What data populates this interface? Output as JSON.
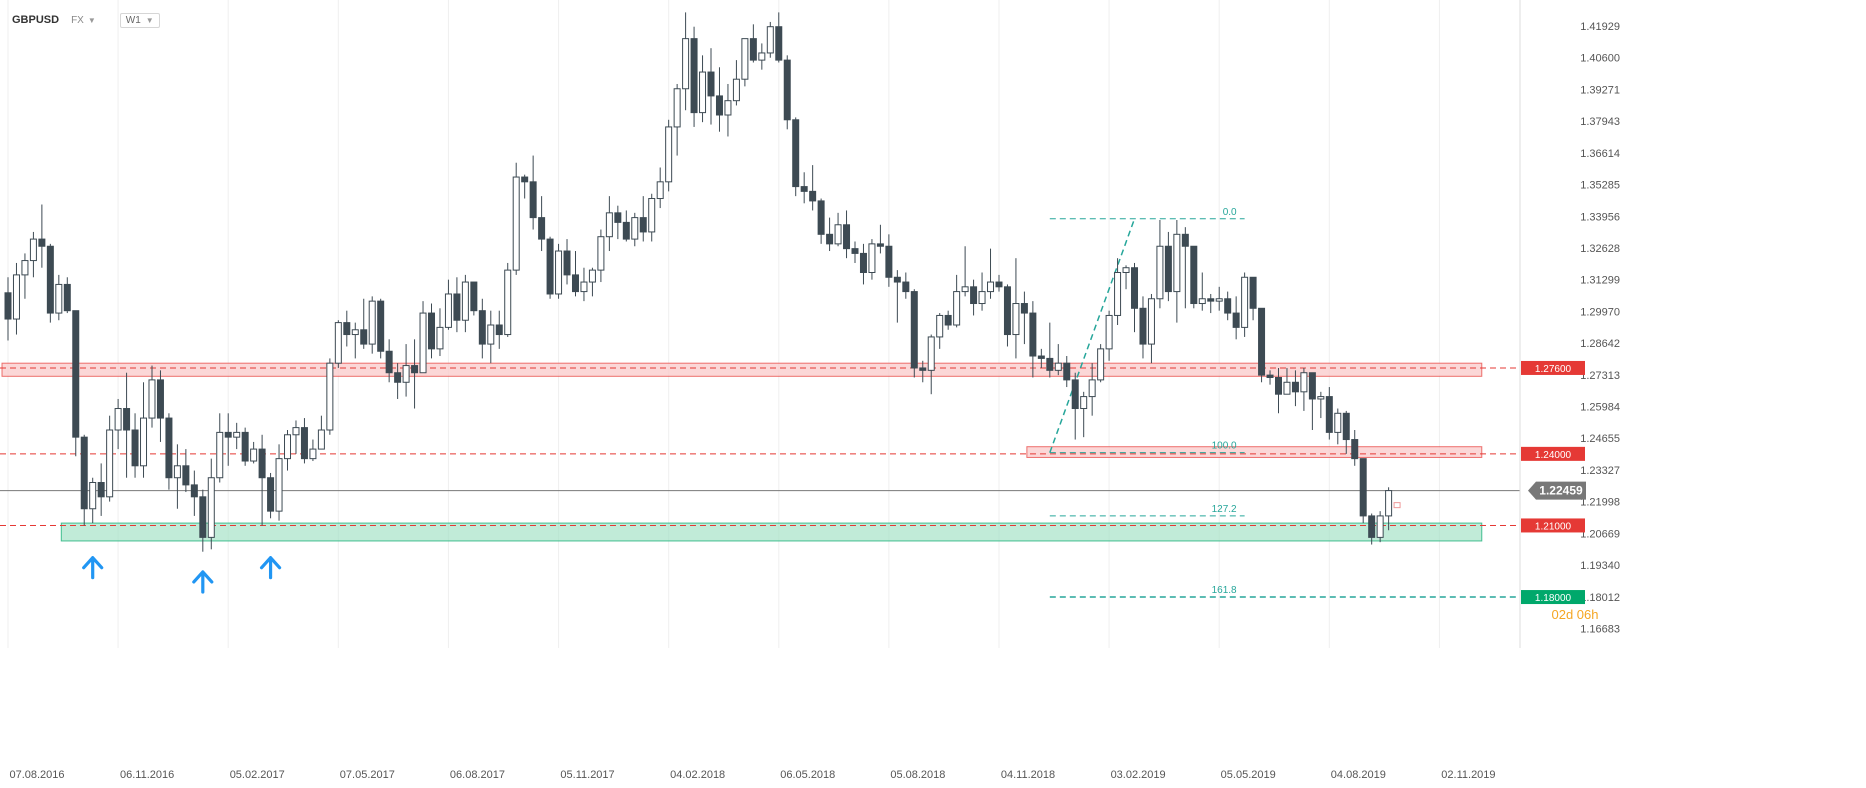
{
  "header": {
    "symbol": "GBPUSD",
    "instrument_type": "FX",
    "timeframe": "W1"
  },
  "colors": {
    "bull_body": "#ffffff",
    "bear_body": "#3d4a53",
    "wick": "#3d4a53",
    "resistance_zone": "#f9c9c9",
    "support_zone": "#9fe0c3",
    "red_level": "#e53935",
    "green_level": "#00a86b",
    "fib": "#26a69a",
    "current_price": "#787878",
    "arrow": "#2196f3",
    "timer": "#f5a623"
  },
  "chart_data": {
    "type": "candlestick",
    "y_axis": {
      "min": 1.162,
      "max": 1.426,
      "ticks": [
        1.41929,
        1.406,
        1.39271,
        1.37943,
        1.36614,
        1.35285,
        1.33956,
        1.32628,
        1.31299,
        1.2997,
        1.28642,
        1.27313,
        1.25984,
        1.24655,
        1.23327,
        1.21998,
        1.20669,
        1.1934,
        1.18012,
        1.16683
      ]
    },
    "x_axis": {
      "labels": [
        {
          "text": "07.08.2016",
          "week": 0
        },
        {
          "text": "06.11.2016",
          "week": 13
        },
        {
          "text": "05.02.2017",
          "week": 26
        },
        {
          "text": "07.05.2017",
          "week": 39
        },
        {
          "text": "06.08.2017",
          "week": 52
        },
        {
          "text": "05.11.2017",
          "week": 65
        },
        {
          "text": "04.02.2018",
          "week": 78
        },
        {
          "text": "06.05.2018",
          "week": 91
        },
        {
          "text": "05.08.2018",
          "week": 104
        },
        {
          "text": "04.11.2018",
          "week": 117
        },
        {
          "text": "03.02.2019",
          "week": 130
        },
        {
          "text": "05.05.2019",
          "week": 143
        },
        {
          "text": "04.08.2019",
          "week": 156
        },
        {
          "text": "02.11.2019",
          "week": 169
        }
      ]
    },
    "grid": "vertical",
    "current_price": "1.22459",
    "countdown": {
      "days": "02d",
      "hours": "06h"
    },
    "levels": [
      {
        "label": "1.27600",
        "price": 1.276,
        "color": "red"
      },
      {
        "label": "1.24000",
        "price": 1.24,
        "color": "red"
      },
      {
        "label": "1.21000",
        "price": 1.21,
        "color": "red"
      },
      {
        "label": "1.18000",
        "price": 1.18,
        "color": "green"
      }
    ],
    "zones": [
      {
        "kind": "resistance",
        "from_price": 1.2725,
        "to_price": 1.278,
        "from_week": 0,
        "to_week": 174
      },
      {
        "kind": "resistance",
        "from_price": 1.2385,
        "to_price": 1.243,
        "from_week": 121,
        "to_week": 174
      },
      {
        "kind": "support",
        "from_price": 1.2035,
        "to_price": 1.211,
        "from_week": 7,
        "to_week": 174
      }
    ],
    "fibonacci": {
      "levels": [
        {
          "label": "0.0",
          "price": 1.3385
        },
        {
          "label": "100.0",
          "price": 1.2405
        },
        {
          "label": "127.2",
          "price": 1.214
        },
        {
          "label": "161.8",
          "price": 1.18
        }
      ],
      "from_week": 123,
      "to_week": 146,
      "swing": {
        "from_week": 123,
        "from_price": 1.2405,
        "to_week": 133,
        "to_price": 1.3385
      }
    },
    "arrows": [
      {
        "week": 10,
        "price": 1.1965
      },
      {
        "week": 23,
        "price": 1.1905
      },
      {
        "week": 31,
        "price": 1.1965
      }
    ],
    "candles": [
      [
        1.3075,
        1.314,
        1.2875,
        1.2965
      ],
      [
        1.2965,
        1.32,
        1.29,
        1.315
      ],
      [
        1.315,
        1.324,
        1.305,
        1.321
      ],
      [
        1.321,
        1.333,
        1.314,
        1.33
      ],
      [
        1.33,
        1.3445,
        1.318,
        1.327
      ],
      [
        1.327,
        1.328,
        1.295,
        1.299
      ],
      [
        1.299,
        1.315,
        1.296,
        1.311
      ],
      [
        1.311,
        1.314,
        1.299,
        1.3
      ],
      [
        1.3,
        1.3,
        1.239,
        1.247
      ],
      [
        1.247,
        1.248,
        1.21,
        1.217
      ],
      [
        1.217,
        1.23,
        1.211,
        1.228
      ],
      [
        1.228,
        1.236,
        1.214,
        1.222
      ],
      [
        1.222,
        1.256,
        1.22,
        1.25
      ],
      [
        1.25,
        1.263,
        1.242,
        1.259
      ],
      [
        1.259,
        1.274,
        1.23,
        1.25
      ],
      [
        1.25,
        1.257,
        1.23,
        1.235
      ],
      [
        1.235,
        1.27,
        1.23,
        1.255
      ],
      [
        1.255,
        1.277,
        1.251,
        1.271
      ],
      [
        1.271,
        1.275,
        1.245,
        1.255
      ],
      [
        1.255,
        1.257,
        1.225,
        1.23
      ],
      [
        1.23,
        1.244,
        1.217,
        1.235
      ],
      [
        1.235,
        1.242,
        1.224,
        1.227
      ],
      [
        1.227,
        1.233,
        1.214,
        1.222
      ],
      [
        1.222,
        1.225,
        1.199,
        1.205
      ],
      [
        1.205,
        1.238,
        1.2,
        1.23
      ],
      [
        1.23,
        1.257,
        1.228,
        1.249
      ],
      [
        1.249,
        1.257,
        1.235,
        1.247
      ],
      [
        1.247,
        1.253,
        1.242,
        1.249
      ],
      [
        1.249,
        1.251,
        1.235,
        1.237
      ],
      [
        1.237,
        1.245,
        1.236,
        1.242
      ],
      [
        1.242,
        1.248,
        1.21,
        1.23
      ],
      [
        1.23,
        1.232,
        1.213,
        1.216
      ],
      [
        1.216,
        1.244,
        1.212,
        1.238
      ],
      [
        1.238,
        1.25,
        1.233,
        1.248
      ],
      [
        1.248,
        1.254,
        1.24,
        1.251
      ],
      [
        1.251,
        1.255,
        1.236,
        1.238
      ],
      [
        1.238,
        1.246,
        1.237,
        1.242
      ],
      [
        1.242,
        1.256,
        1.242,
        1.25
      ],
      [
        1.25,
        1.28,
        1.248,
        1.278
      ],
      [
        1.278,
        1.296,
        1.276,
        1.295
      ],
      [
        1.295,
        1.3,
        1.285,
        1.29
      ],
      [
        1.29,
        1.295,
        1.28,
        1.292
      ],
      [
        1.292,
        1.305,
        1.284,
        1.286
      ],
      [
        1.286,
        1.306,
        1.282,
        1.304
      ],
      [
        1.304,
        1.305,
        1.28,
        1.283
      ],
      [
        1.283,
        1.288,
        1.27,
        1.274
      ],
      [
        1.274,
        1.278,
        1.263,
        1.27
      ],
      [
        1.27,
        1.286,
        1.264,
        1.277
      ],
      [
        1.277,
        1.288,
        1.259,
        1.274
      ],
      [
        1.274,
        1.304,
        1.274,
        1.299
      ],
      [
        1.299,
        1.303,
        1.28,
        1.284
      ],
      [
        1.284,
        1.301,
        1.281,
        1.293
      ],
      [
        1.293,
        1.313,
        1.292,
        1.307
      ],
      [
        1.307,
        1.314,
        1.291,
        1.296
      ],
      [
        1.296,
        1.315,
        1.291,
        1.312
      ],
      [
        1.312,
        1.312,
        1.298,
        1.3
      ],
      [
        1.3,
        1.305,
        1.28,
        1.286
      ],
      [
        1.286,
        1.3,
        1.278,
        1.294
      ],
      [
        1.294,
        1.3,
        1.284,
        1.29
      ],
      [
        1.29,
        1.32,
        1.289,
        1.317
      ],
      [
        1.317,
        1.362,
        1.315,
        1.356
      ],
      [
        1.356,
        1.357,
        1.347,
        1.354
      ],
      [
        1.354,
        1.365,
        1.334,
        1.339
      ],
      [
        1.339,
        1.348,
        1.325,
        1.33
      ],
      [
        1.33,
        1.331,
        1.305,
        1.307
      ],
      [
        1.307,
        1.328,
        1.305,
        1.325
      ],
      [
        1.325,
        1.33,
        1.311,
        1.315
      ],
      [
        1.315,
        1.325,
        1.306,
        1.308
      ],
      [
        1.308,
        1.318,
        1.304,
        1.312
      ],
      [
        1.312,
        1.318,
        1.306,
        1.317
      ],
      [
        1.317,
        1.334,
        1.312,
        1.331
      ],
      [
        1.331,
        1.348,
        1.325,
        1.341
      ],
      [
        1.341,
        1.344,
        1.33,
        1.337
      ],
      [
        1.337,
        1.342,
        1.329,
        1.33
      ],
      [
        1.33,
        1.341,
        1.327,
        1.339
      ],
      [
        1.339,
        1.348,
        1.329,
        1.333
      ],
      [
        1.333,
        1.349,
        1.329,
        1.347
      ],
      [
        1.347,
        1.36,
        1.343,
        1.354
      ],
      [
        1.354,
        1.38,
        1.35,
        1.377
      ],
      [
        1.377,
        1.395,
        1.365,
        1.393
      ],
      [
        1.393,
        1.425,
        1.384,
        1.414
      ],
      [
        1.414,
        1.419,
        1.377,
        1.383
      ],
      [
        1.383,
        1.407,
        1.379,
        1.4
      ],
      [
        1.4,
        1.41,
        1.378,
        1.39
      ],
      [
        1.39,
        1.402,
        1.375,
        1.382
      ],
      [
        1.382,
        1.395,
        1.373,
        1.388
      ],
      [
        1.388,
        1.405,
        1.386,
        1.397
      ],
      [
        1.397,
        1.414,
        1.394,
        1.414
      ],
      [
        1.414,
        1.42,
        1.404,
        1.405
      ],
      [
        1.405,
        1.412,
        1.401,
        1.408
      ],
      [
        1.408,
        1.421,
        1.406,
        1.419
      ],
      [
        1.419,
        1.425,
        1.404,
        1.405
      ],
      [
        1.405,
        1.407,
        1.376,
        1.38
      ],
      [
        1.38,
        1.381,
        1.348,
        1.352
      ],
      [
        1.352,
        1.358,
        1.345,
        1.35
      ],
      [
        1.35,
        1.361,
        1.342,
        1.346
      ],
      [
        1.346,
        1.347,
        1.328,
        1.332
      ],
      [
        1.332,
        1.339,
        1.325,
        1.328
      ],
      [
        1.328,
        1.341,
        1.327,
        1.336
      ],
      [
        1.336,
        1.342,
        1.322,
        1.326
      ],
      [
        1.326,
        1.329,
        1.32,
        1.324
      ],
      [
        1.324,
        1.328,
        1.311,
        1.316
      ],
      [
        1.316,
        1.33,
        1.313,
        1.328
      ],
      [
        1.328,
        1.336,
        1.324,
        1.327
      ],
      [
        1.327,
        1.332,
        1.31,
        1.314
      ],
      [
        1.314,
        1.317,
        1.295,
        1.312
      ],
      [
        1.312,
        1.316,
        1.305,
        1.308
      ],
      [
        1.308,
        1.309,
        1.272,
        1.276
      ],
      [
        1.276,
        1.279,
        1.27,
        1.275
      ],
      [
        1.275,
        1.29,
        1.265,
        1.289
      ],
      [
        1.289,
        1.299,
        1.284,
        1.298
      ],
      [
        1.298,
        1.3,
        1.292,
        1.294
      ],
      [
        1.294,
        1.315,
        1.293,
        1.308
      ],
      [
        1.308,
        1.327,
        1.306,
        1.31
      ],
      [
        1.31,
        1.313,
        1.298,
        1.303
      ],
      [
        1.303,
        1.316,
        1.3,
        1.308
      ],
      [
        1.308,
        1.326,
        1.305,
        1.312
      ],
      [
        1.312,
        1.315,
        1.308,
        1.31
      ],
      [
        1.31,
        1.311,
        1.285,
        1.29
      ],
      [
        1.29,
        1.322,
        1.28,
        1.303
      ],
      [
        1.303,
        1.308,
        1.286,
        1.299
      ],
      [
        1.299,
        1.304,
        1.272,
        1.281
      ],
      [
        1.281,
        1.284,
        1.276,
        1.28
      ],
      [
        1.28,
        1.295,
        1.272,
        1.275
      ],
      [
        1.275,
        1.286,
        1.273,
        1.278
      ],
      [
        1.278,
        1.281,
        1.268,
        1.271
      ],
      [
        1.271,
        1.274,
        1.246,
        1.259
      ],
      [
        1.259,
        1.266,
        1.247,
        1.264
      ],
      [
        1.264,
        1.278,
        1.256,
        1.271
      ],
      [
        1.271,
        1.286,
        1.27,
        1.284
      ],
      [
        1.284,
        1.3,
        1.279,
        1.298
      ],
      [
        1.298,
        1.322,
        1.294,
        1.316
      ],
      [
        1.316,
        1.319,
        1.309,
        1.318
      ],
      [
        1.318,
        1.32,
        1.291,
        1.301
      ],
      [
        1.301,
        1.306,
        1.28,
        1.286
      ],
      [
        1.286,
        1.307,
        1.278,
        1.305
      ],
      [
        1.305,
        1.338,
        1.301,
        1.327
      ],
      [
        1.327,
        1.333,
        1.304,
        1.308
      ],
      [
        1.308,
        1.338,
        1.295,
        1.332
      ],
      [
        1.332,
        1.335,
        1.301,
        1.327
      ],
      [
        1.327,
        1.326,
        1.301,
        1.303
      ],
      [
        1.303,
        1.316,
        1.3,
        1.305
      ],
      [
        1.305,
        1.307,
        1.299,
        1.304
      ],
      [
        1.304,
        1.31,
        1.3,
        1.305
      ],
      [
        1.305,
        1.308,
        1.296,
        1.299
      ],
      [
        1.299,
        1.306,
        1.288,
        1.293
      ],
      [
        1.293,
        1.316,
        1.289,
        1.314
      ],
      [
        1.314,
        1.314,
        1.296,
        1.301
      ],
      [
        1.301,
        1.301,
        1.27,
        1.273
      ],
      [
        1.273,
        1.275,
        1.269,
        1.272
      ],
      [
        1.272,
        1.276,
        1.257,
        1.265
      ],
      [
        1.265,
        1.276,
        1.265,
        1.27
      ],
      [
        1.27,
        1.275,
        1.26,
        1.266
      ],
      [
        1.266,
        1.276,
        1.258,
        1.274
      ],
      [
        1.274,
        1.274,
        1.25,
        1.263
      ],
      [
        1.263,
        1.266,
        1.255,
        1.264
      ],
      [
        1.264,
        1.268,
        1.246,
        1.249
      ],
      [
        1.249,
        1.259,
        1.244,
        1.257
      ],
      [
        1.257,
        1.258,
        1.24,
        1.246
      ],
      [
        1.246,
        1.25,
        1.235,
        1.238
      ],
      [
        1.238,
        1.238,
        1.211,
        1.214
      ],
      [
        1.214,
        1.215,
        1.202,
        1.205
      ],
      [
        1.205,
        1.216,
        1.203,
        1.214
      ],
      [
        1.214,
        1.226,
        1.208,
        1.2246
      ]
    ]
  }
}
